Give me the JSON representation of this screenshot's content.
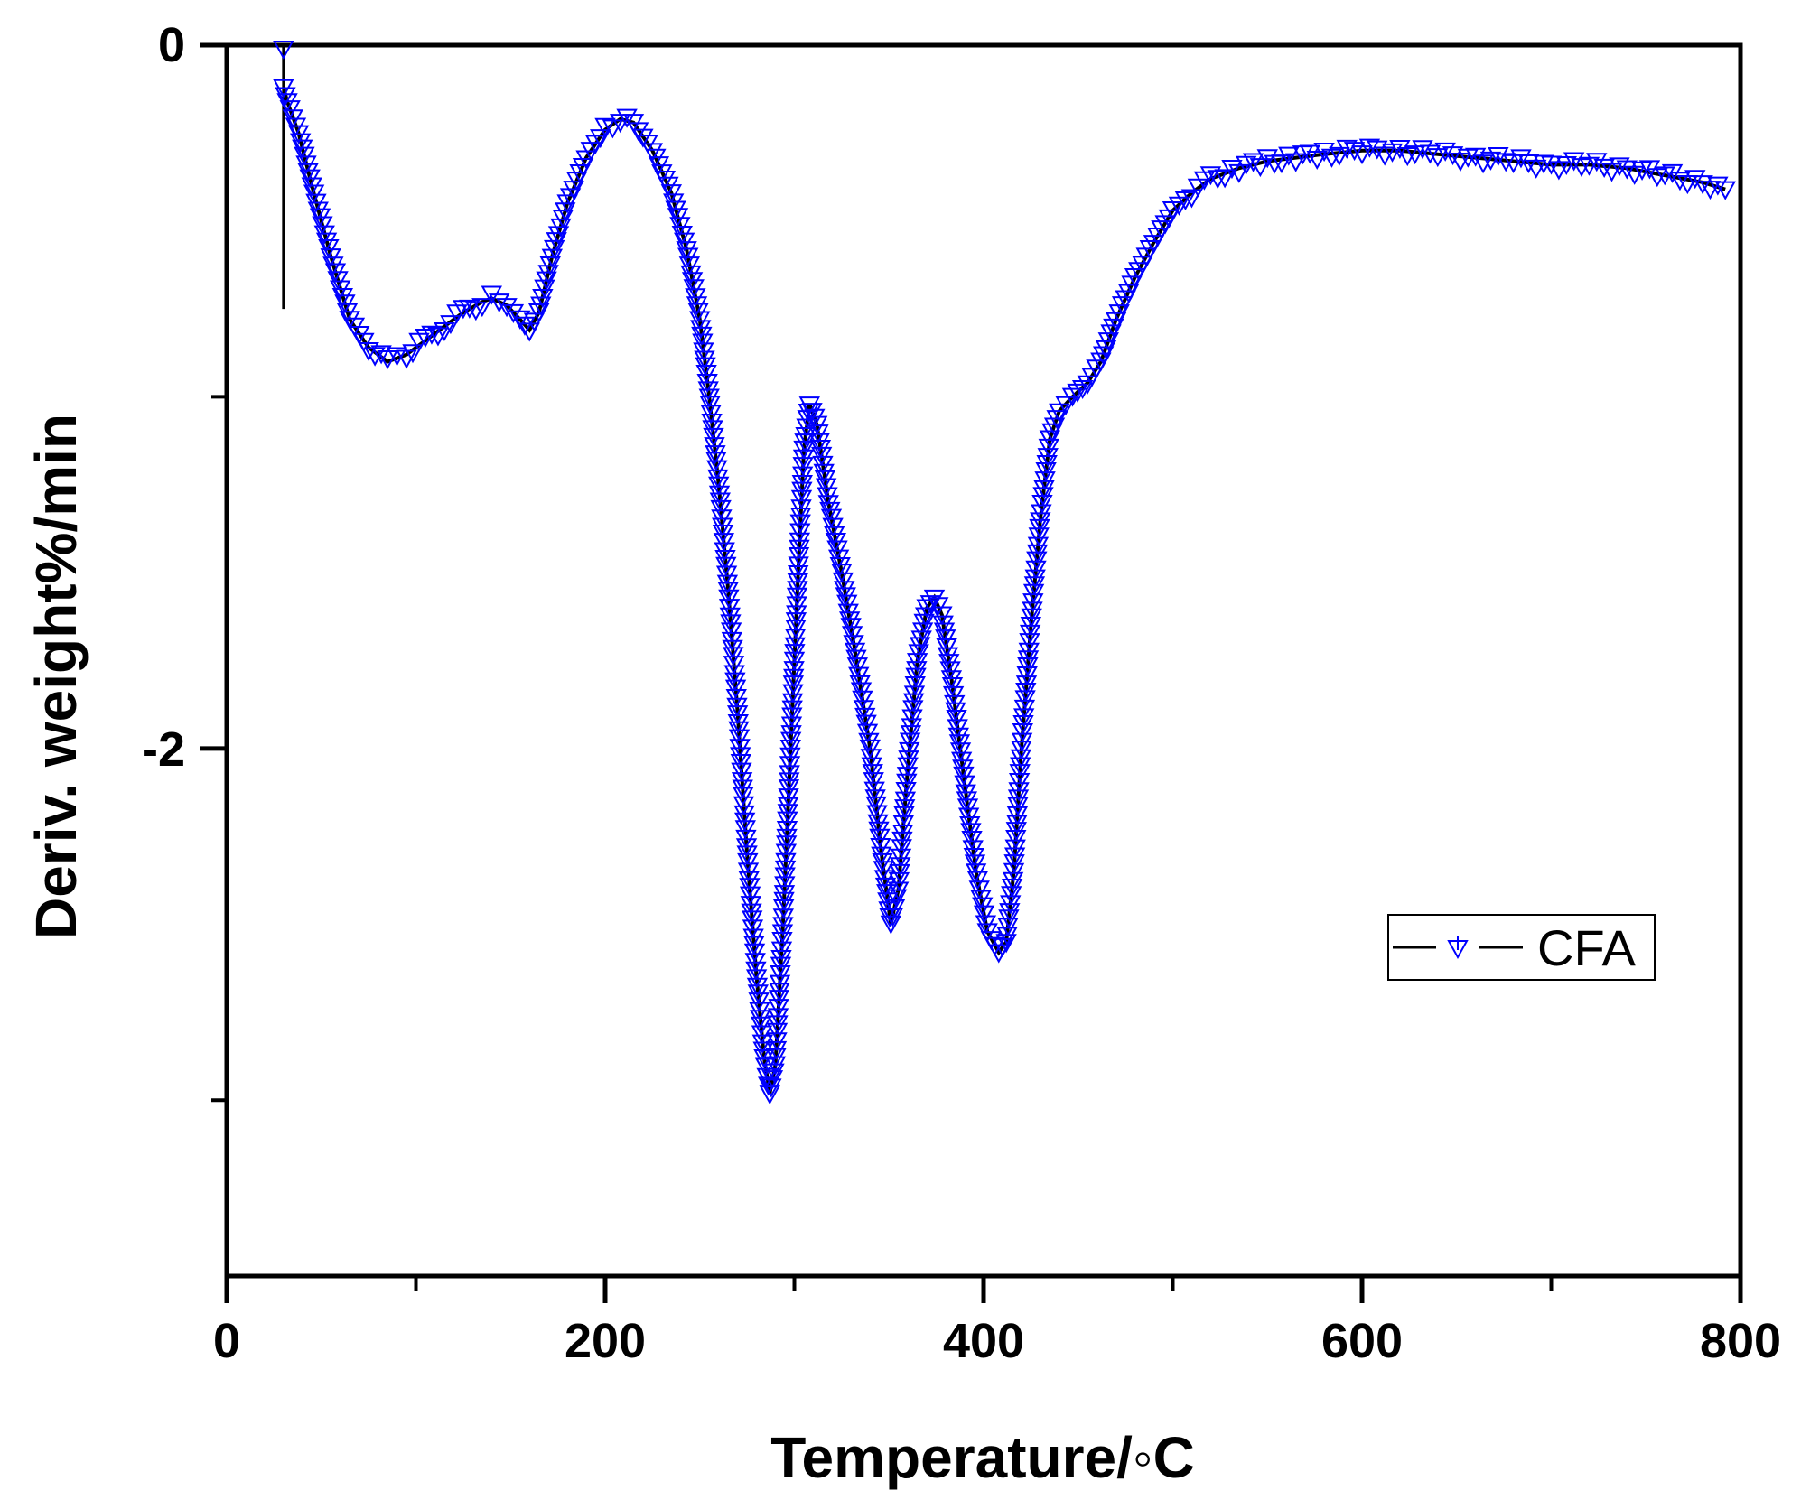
{
  "chart_data": {
    "type": "line",
    "title": "",
    "xlabel": "Temperature/◦C",
    "ylabel": "Deriv. weight%/min",
    "xlim": [
      0,
      800
    ],
    "ylim": [
      -3.5,
      0
    ],
    "x_ticks": [
      0,
      200,
      400,
      600,
      800
    ],
    "x_tick_labels": [
      "0",
      "200",
      "400",
      "600",
      "800"
    ],
    "x_minor_ticks": [
      100,
      300,
      500,
      700
    ],
    "y_ticks": [
      0,
      -2
    ],
    "y_tick_labels": [
      "0",
      "-2"
    ],
    "y_minor_ticks": [
      -1,
      -3
    ],
    "grid": false,
    "legend": {
      "position": "lower right",
      "entries": [
        "CFA"
      ]
    },
    "series": [
      {
        "name": "CFA",
        "line_color": "#000000",
        "marker": "down-triangle-open",
        "marker_color": "#0000ff",
        "x": [
          30,
          32,
          38,
          45,
          55,
          65,
          75,
          85,
          95,
          105,
          115,
          125,
          135,
          140,
          148,
          155,
          160,
          165,
          172,
          180,
          190,
          200,
          208,
          215,
          225,
          235,
          243,
          250,
          255,
          260,
          265,
          270,
          275,
          280,
          284,
          287,
          290,
          294,
          298,
          302,
          305,
          308,
          312,
          318,
          325,
          332,
          340,
          346,
          351,
          355,
          360,
          365,
          370,
          374,
          378,
          383,
          390,
          396,
          402,
          408,
          412,
          416,
          420,
          425,
          430,
          435,
          440,
          447,
          455,
          462,
          470,
          480,
          490,
          500,
          510,
          520,
          535,
          550,
          565,
          580,
          600,
          620,
          640,
          660,
          680,
          700,
          720,
          740,
          760,
          780,
          792
        ],
        "y": [
          -0.12,
          -0.16,
          -0.25,
          -0.4,
          -0.6,
          -0.78,
          -0.86,
          -0.9,
          -0.88,
          -0.84,
          -0.8,
          -0.76,
          -0.73,
          -0.72,
          -0.74,
          -0.78,
          -0.81,
          -0.76,
          -0.6,
          -0.45,
          -0.32,
          -0.24,
          -0.21,
          -0.22,
          -0.3,
          -0.42,
          -0.58,
          -0.78,
          -1.0,
          -1.25,
          -1.55,
          -1.9,
          -2.3,
          -2.65,
          -2.88,
          -2.98,
          -2.9,
          -2.5,
          -2.0,
          -1.5,
          -1.15,
          -1.02,
          -1.08,
          -1.3,
          -1.5,
          -1.72,
          -2.0,
          -2.3,
          -2.5,
          -2.4,
          -2.05,
          -1.75,
          -1.6,
          -1.57,
          -1.62,
          -1.8,
          -2.1,
          -2.35,
          -2.52,
          -2.58,
          -2.55,
          -2.35,
          -2.0,
          -1.65,
          -1.35,
          -1.12,
          -1.04,
          -1.0,
          -0.96,
          -0.9,
          -0.78,
          -0.66,
          -0.56,
          -0.47,
          -0.42,
          -0.38,
          -0.35,
          -0.33,
          -0.32,
          -0.31,
          -0.3,
          -0.3,
          -0.31,
          -0.32,
          -0.33,
          -0.34,
          -0.34,
          -0.35,
          -0.37,
          -0.39,
          -0.41
        ]
      }
    ],
    "annotations": [
      {
        "type": "vertical-segment",
        "x": 30,
        "y_from": 0,
        "y_to": -0.75
      }
    ]
  },
  "axes": {
    "x_title": "Temperature/◦C",
    "y_title": "Deriv. weight%/min",
    "x_tick_labels": [
      "0",
      "200",
      "400",
      "600",
      "800"
    ],
    "y_tick_labels": [
      "0",
      "-2"
    ]
  },
  "legend": {
    "label": "CFA"
  },
  "colors": {
    "line": "#000000",
    "marker": "#0000ff",
    "axis": "#000000",
    "background": "#ffffff"
  }
}
